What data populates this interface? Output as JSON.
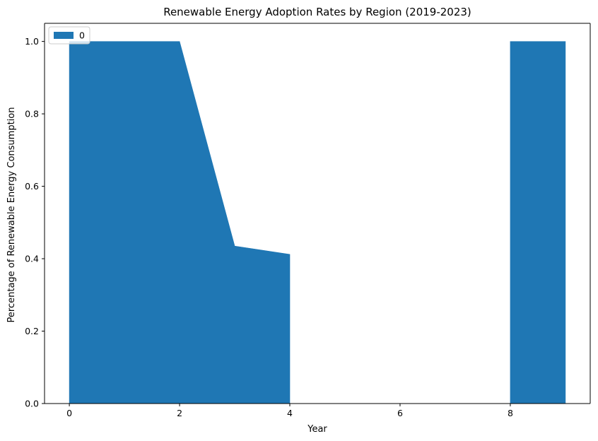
{
  "chart_data": {
    "type": "area",
    "title": "Renewable Energy Adoption Rates by Region (2019-2023)",
    "xlabel": "Year",
    "ylabel": "Percentage of Renewable Energy Consumption",
    "xlim": [
      -0.45,
      9.45
    ],
    "ylim": [
      0,
      1.05
    ],
    "xticks": [
      0,
      2,
      4,
      6,
      8
    ],
    "yticks": [
      0.0,
      0.2,
      0.4,
      0.6,
      0.8,
      1.0
    ],
    "xtick_labels": [
      "0",
      "2",
      "4",
      "6",
      "8"
    ],
    "ytick_labels": [
      "0.0",
      "0.2",
      "0.4",
      "0.6",
      "0.8",
      "1.0"
    ],
    "grid": false,
    "legend_position": "top-left",
    "series": [
      {
        "name": "0",
        "color": "#1f77b4",
        "x": [
          0,
          1,
          2,
          3,
          4,
          5,
          6,
          7,
          8,
          9
        ],
        "values": [
          1.0,
          1.0,
          1.0,
          0.435,
          0.412,
          null,
          null,
          null,
          1.0,
          1.0
        ]
      }
    ]
  }
}
